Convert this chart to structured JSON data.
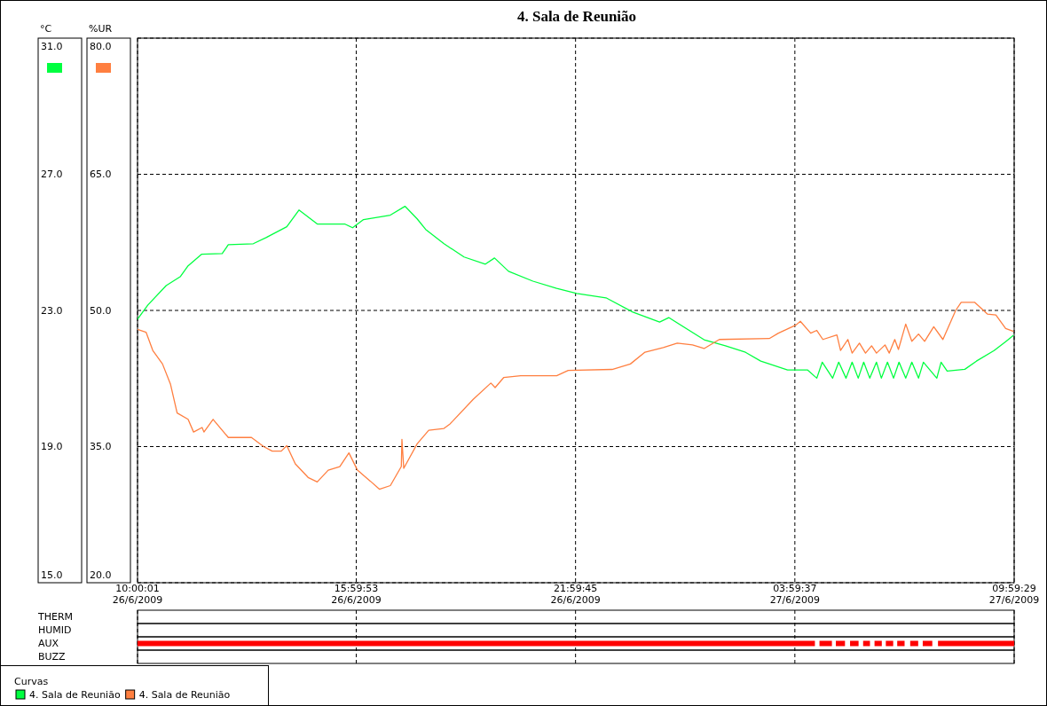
{
  "chart_data": [
    {
      "type": "line",
      "title": "4. Sala de Reunião",
      "ylabel": "°C",
      "y2label": "%UR",
      "legend_title": "Curvas",
      "legend": "bottom left",
      "grid": true,
      "xlim": [
        "2009-06-26T10:00",
        "2009-06-27T09:59"
      ],
      "xticks": [
        {
          "value": "2009-06-26T10:00",
          "label": "10:00:01\n26/6/2009"
        },
        {
          "value": "2009-06-26T15:59",
          "label": "15:59:53\n26/6/2009"
        },
        {
          "value": "2009-06-26T21:59",
          "label": "21:59:45\n26/6/2009"
        },
        {
          "value": "2009-06-27T03:59",
          "label": "03:59:37\n27/6/2009"
        },
        {
          "value": "2009-06-27T09:59",
          "label": "09:59:29\n27/6/2009"
        }
      ],
      "ylim": [
        15,
        31
      ],
      "yticks": [
        {
          "value": 15,
          "label": "15.0"
        },
        {
          "value": 19,
          "label": "19.0"
        },
        {
          "value": 23,
          "label": "23.0"
        },
        {
          "value": 27,
          "label": "27.0"
        },
        {
          "value": 31,
          "label": "31.0"
        }
      ],
      "y2lim": [
        20,
        80
      ],
      "y2ticks": [
        {
          "value": 20,
          "label": "20.0"
        },
        {
          "value": 35,
          "label": "35.0"
        },
        {
          "value": 50,
          "label": "50.0"
        },
        {
          "value": 65,
          "label": "65.0"
        },
        {
          "value": 80,
          "label": "80.0"
        }
      ],
      "series": [
        {
          "name": "4. Sala de Reunião",
          "color": "#00ff40",
          "x": [
            "2009-06-26T10:00",
            "2009-06-26T10:17",
            "2009-06-26T10:47",
            "2009-06-26T11:10",
            "2009-06-26T11:23",
            "2009-06-26T11:45",
            "2009-06-26T12:19",
            "2009-06-26T12:29",
            "2009-06-26T13:10",
            "2009-06-26T13:31",
            "2009-06-26T14:05",
            "2009-06-26T14:25",
            "2009-06-26T14:55",
            "2009-06-26T15:40",
            "2009-06-26T15:53",
            "2009-06-26T16:11",
            "2009-06-26T16:55",
            "2009-06-26T17:19",
            "2009-06-26T17:39",
            "2009-06-26T17:53",
            "2009-06-26T18:23",
            "2009-06-26T18:56",
            "2009-06-26T19:31",
            "2009-06-26T19:46",
            "2009-06-26T20:09",
            "2009-06-26T20:49",
            "2009-06-26T21:28",
            "2009-06-26T22:01",
            "2009-06-26T22:49",
            "2009-06-26T23:33",
            "2009-06-27T00:17",
            "2009-06-27T00:32",
            "2009-06-27T01:30",
            "2009-06-27T02:05",
            "2009-06-27T02:38",
            "2009-06-27T03:03",
            "2009-06-27T03:47",
            "2009-06-27T04:20",
            "2009-06-27T04:35",
            "2009-06-27T04:44",
            "2009-06-27T05:01",
            "2009-06-27T05:11",
            "2009-06-27T05:23",
            "2009-06-27T05:33",
            "2009-06-27T05:43",
            "2009-06-27T05:52",
            "2009-06-27T06:02",
            "2009-06-27T06:13",
            "2009-06-27T06:21",
            "2009-06-27T06:31",
            "2009-06-27T06:41",
            "2009-06-27T06:50",
            "2009-06-27T07:01",
            "2009-06-27T07:11",
            "2009-06-27T07:22",
            "2009-06-27T07:30",
            "2009-06-27T07:52",
            "2009-06-27T07:59",
            "2009-06-27T08:09",
            "2009-06-27T08:38",
            "2009-06-27T08:57",
            "2009-06-27T09:26",
            "2009-06-27T09:45",
            "2009-06-27T09:58"
          ],
          "values": [
            22.74,
            23.16,
            23.73,
            23.99,
            24.31,
            24.65,
            24.67,
            24.93,
            24.96,
            25.14,
            25.46,
            25.95,
            25.54,
            25.54,
            25.43,
            25.67,
            25.8,
            26.06,
            25.69,
            25.38,
            24.96,
            24.57,
            24.36,
            24.54,
            24.15,
            23.86,
            23.65,
            23.5,
            23.37,
            22.95,
            22.66,
            22.79,
            22.14,
            21.96,
            21.77,
            21.51,
            21.25,
            21.25,
            21.01,
            21.48,
            21.01,
            21.48,
            21.01,
            21.48,
            21.01,
            21.48,
            21.01,
            21.48,
            21.01,
            21.48,
            21.01,
            21.48,
            21.01,
            21.48,
            21.01,
            21.48,
            21.01,
            21.48,
            21.22,
            21.27,
            21.51,
            21.82,
            22.08,
            22.27
          ]
        },
        {
          "name": "4. Sala de Reunião",
          "color": "#ff7f40",
          "axis": "y2",
          "x": [
            "2009-06-26T10:00",
            "2009-06-26T10:14",
            "2009-06-26T10:25",
            "2009-06-26T10:41",
            "2009-06-26T10:54",
            "2009-06-26T11:05",
            "2009-06-26T11:23",
            "2009-06-26T11:32",
            "2009-06-26T11:46",
            "2009-06-26T11:49",
            "2009-06-26T12:04",
            "2009-06-26T12:29",
            "2009-06-26T13:07",
            "2009-06-26T13:27",
            "2009-06-26T13:41",
            "2009-06-26T13:56",
            "2009-06-26T14:05",
            "2009-06-26T14:19",
            "2009-06-26T14:40",
            "2009-06-26T14:55",
            "2009-06-26T15:13",
            "2009-06-26T15:32",
            "2009-06-26T15:47",
            "2009-06-26T16:01",
            "2009-06-26T16:22",
            "2009-06-26T16:37",
            "2009-06-26T16:55",
            "2009-06-26T17:13",
            "2009-06-26T17:14",
            "2009-06-26T17:17",
            "2009-06-26T17:39",
            "2009-06-26T17:58",
            "2009-06-26T18:23",
            "2009-06-26T18:33",
            "2009-06-26T19:11",
            "2009-06-26T19:40",
            "2009-06-26T19:47",
            "2009-06-26T20:01",
            "2009-06-26T20:29",
            "2009-06-26T21:28",
            "2009-06-26T21:47",
            "2009-06-26T22:59",
            "2009-06-26T23:29",
            "2009-06-26T23:53",
            "2009-06-27T00:23",
            "2009-06-27T00:46",
            "2009-06-27T01:11",
            "2009-06-27T01:30",
            "2009-06-27T01:55",
            "2009-06-27T03:17",
            "2009-06-27T03:32",
            "2009-06-27T04:01",
            "2009-06-27T04:08",
            "2009-06-27T04:25",
            "2009-06-27T04:35",
            "2009-06-27T04:45",
            "2009-06-27T05:08",
            "2009-06-27T05:14",
            "2009-06-27T05:26",
            "2009-06-27T05:33",
            "2009-06-27T05:45",
            "2009-06-27T05:55",
            "2009-06-27T06:05",
            "2009-06-27T06:13",
            "2009-06-27T06:27",
            "2009-06-27T06:34",
            "2009-06-27T06:43",
            "2009-06-27T06:49",
            "2009-06-27T07:01",
            "2009-06-27T07:11",
            "2009-06-27T07:22",
            "2009-06-27T07:32",
            "2009-06-27T07:47",
            "2009-06-27T08:02",
            "2009-06-27T08:23",
            "2009-06-27T08:32",
            "2009-06-27T08:54",
            "2009-06-27T09:15",
            "2009-06-27T09:29",
            "2009-06-27T09:45",
            "2009-06-27T09:58"
          ],
          "values": [
            47.9,
            47.6,
            45.6,
            44.1,
            41.9,
            38.7,
            38.0,
            36.6,
            37.1,
            36.6,
            38.0,
            36.0,
            36.0,
            35.0,
            34.5,
            34.5,
            35.1,
            33.1,
            31.6,
            31.1,
            32.4,
            32.8,
            34.3,
            32.4,
            31.2,
            30.3,
            30.7,
            32.8,
            35.8,
            32.6,
            35.3,
            36.8,
            37.0,
            37.5,
            40.2,
            42.0,
            41.5,
            42.6,
            42.8,
            42.8,
            43.4,
            43.5,
            44.1,
            45.4,
            45.9,
            46.4,
            46.2,
            45.8,
            46.8,
            46.9,
            47.5,
            48.4,
            48.8,
            47.5,
            47.8,
            46.8,
            47.3,
            45.6,
            46.8,
            45.3,
            46.4,
            45.3,
            46.1,
            45.3,
            46.2,
            45.3,
            46.8,
            45.7,
            48.5,
            46.6,
            47.4,
            46.6,
            48.2,
            46.8,
            50.0,
            50.9,
            50.9,
            49.6,
            49.5,
            48.0,
            47.7
          ]
        }
      ]
    },
    {
      "type": "other",
      "categories": [
        "THERM",
        "HUMID",
        "AUX",
        "BUZZ"
      ]
    }
  ]
}
